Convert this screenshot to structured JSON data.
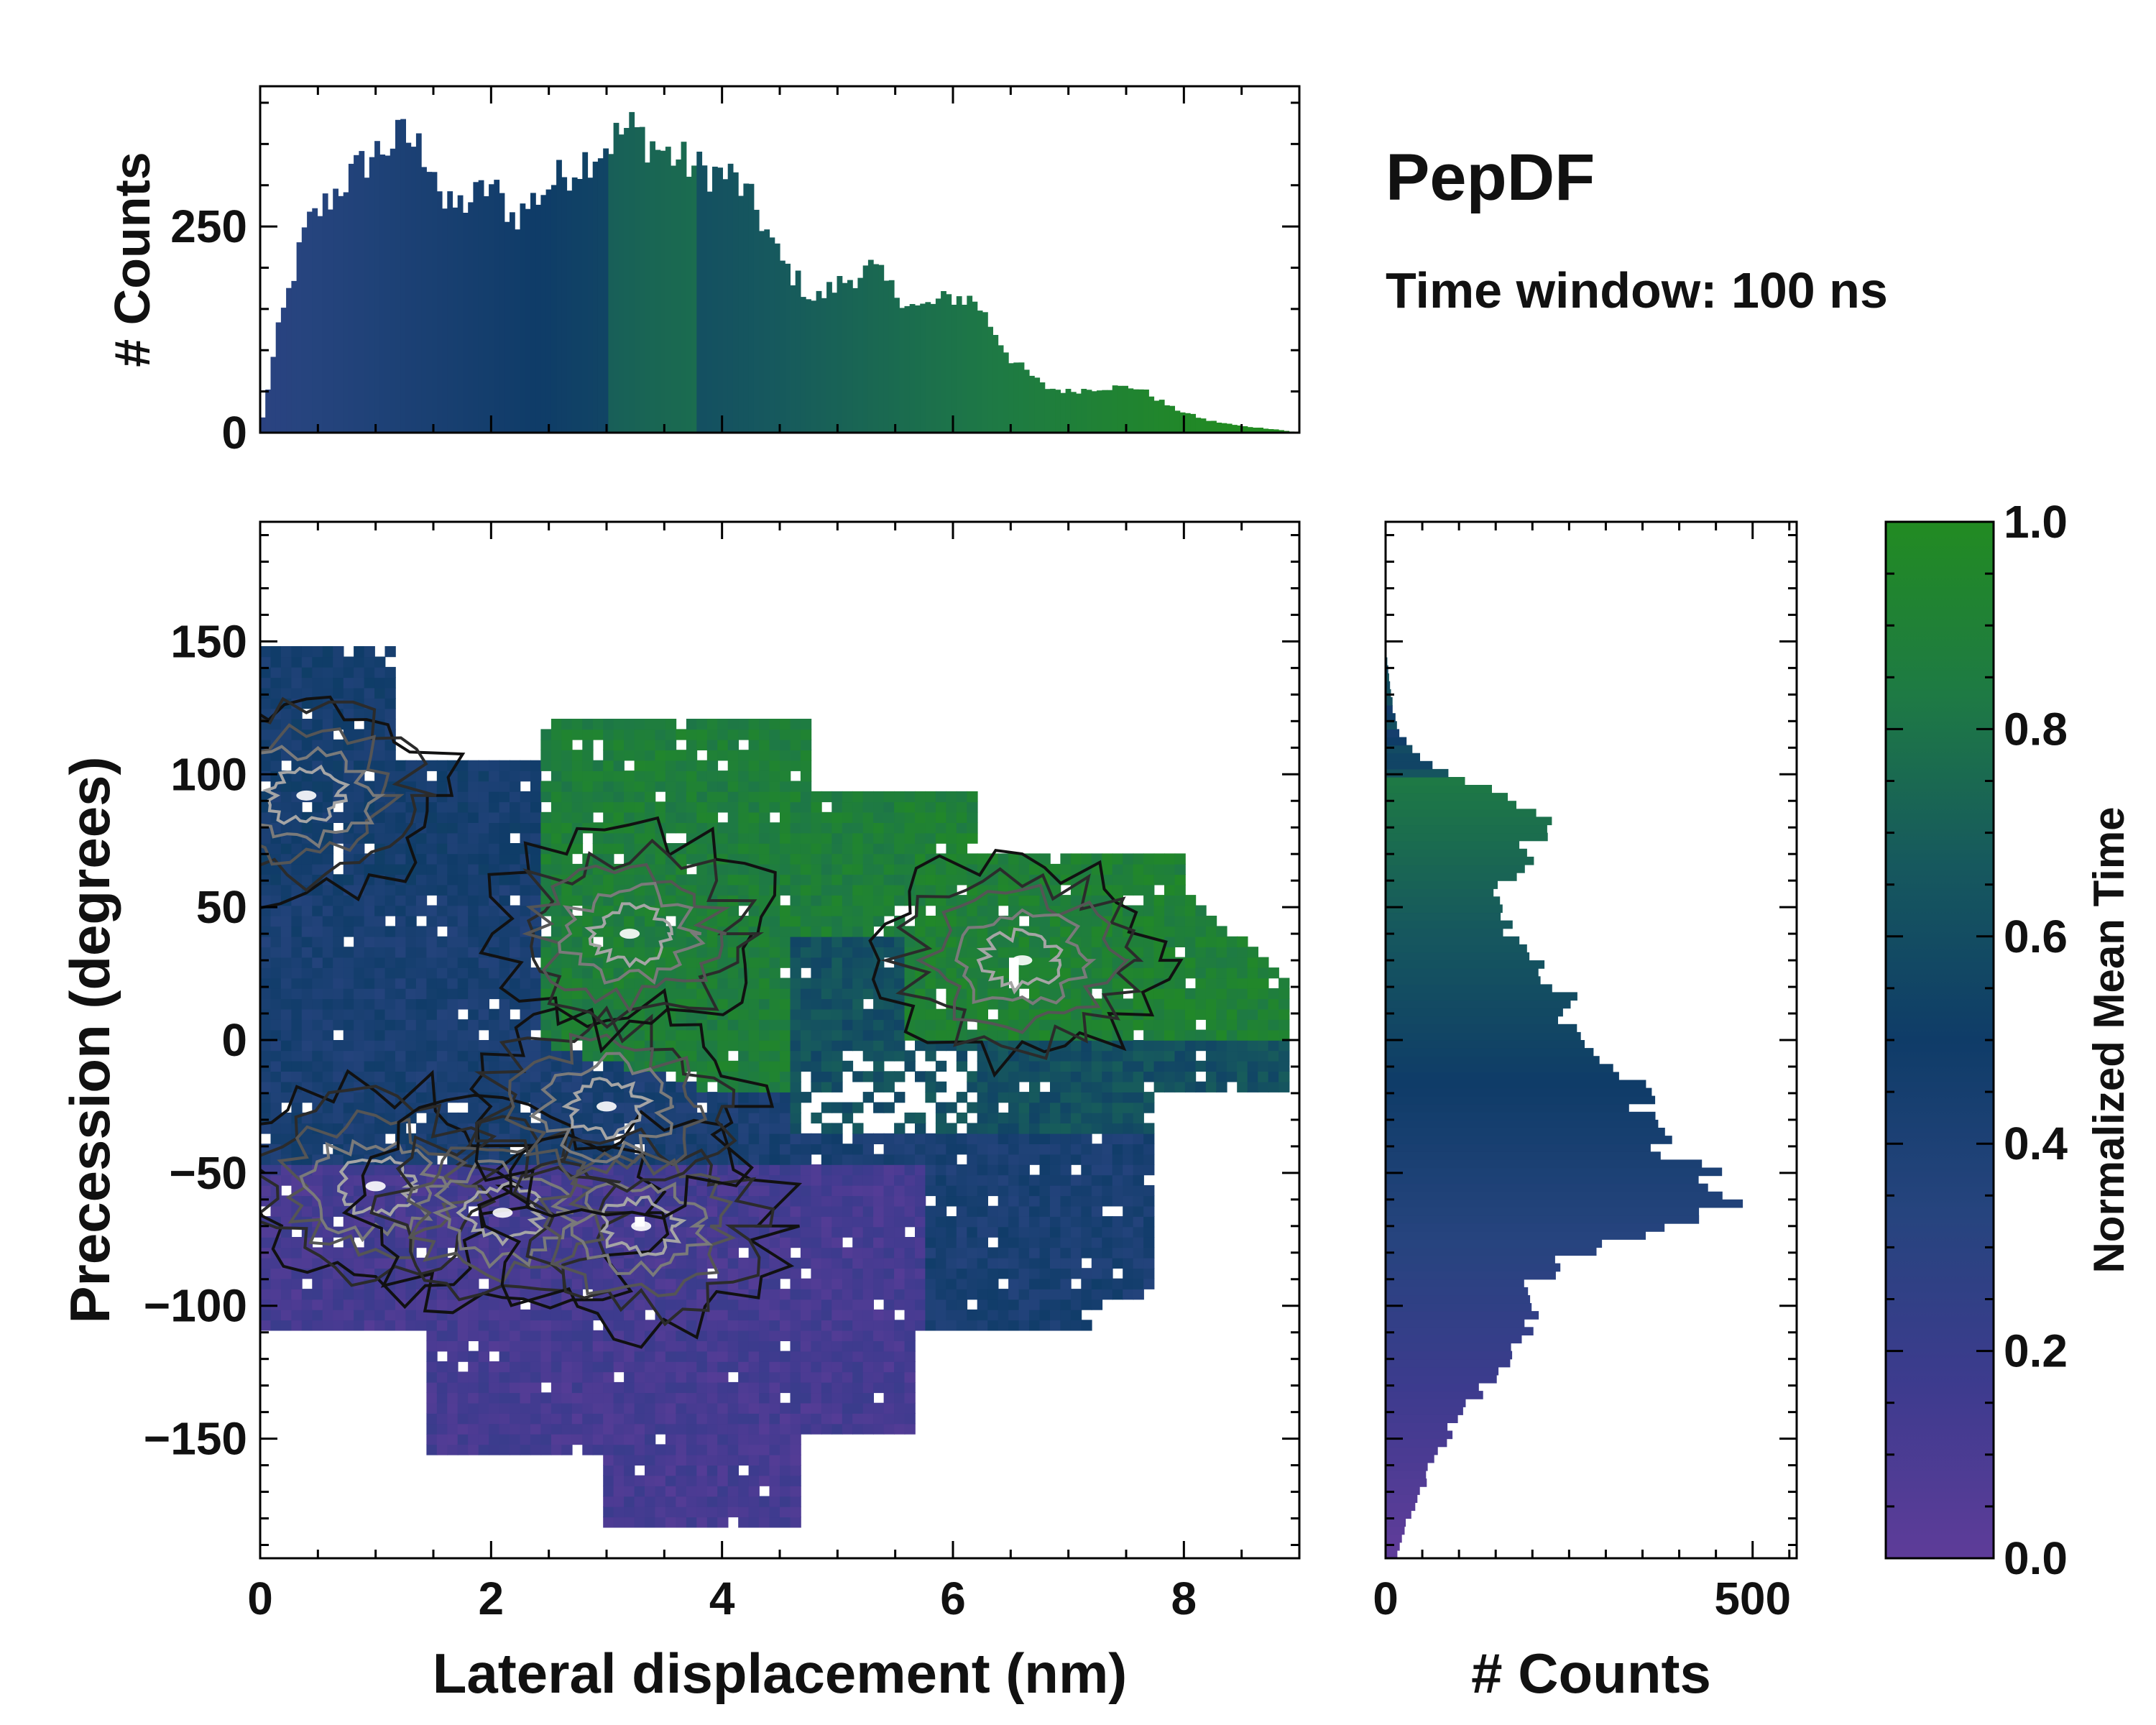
{
  "chart_data": {
    "title": "PepDF",
    "subtitle": "Time window: 100 ns",
    "main_panel": {
      "type": "heatmap",
      "xlabel": "Lateral displacement (nm)",
      "ylabel": "Precession (degrees)",
      "xlim": [
        0,
        9
      ],
      "ylim": [
        -195,
        195
      ],
      "xticks": [
        0,
        2,
        4,
        6,
        8
      ],
      "yticks": [
        -150,
        -100,
        -50,
        0,
        50,
        100,
        150
      ],
      "color_encoding": "Normalized Mean Time",
      "description_regions": [
        {
          "name": "early (purple)",
          "x_range": [
            0.2,
            5.5
          ],
          "y_range": [
            -180,
            -40
          ],
          "mean_time": 0.15
        },
        {
          "name": "mid (blue)",
          "x_range": [
            0,
            4.5
          ],
          "y_range": [
            -60,
            150
          ],
          "mean_time": 0.45
        },
        {
          "name": "late (green)",
          "x_range": [
            2.4,
            9
          ],
          "y_range": [
            -30,
            120
          ],
          "mean_time": 0.9
        }
      ],
      "density_peaks": [
        {
          "x": 1.0,
          "y": -55
        },
        {
          "x": 2.1,
          "y": -65
        },
        {
          "x": 3.3,
          "y": -70
        },
        {
          "x": 3.0,
          "y": -25
        },
        {
          "x": 3.2,
          "y": 40
        },
        {
          "x": 0.4,
          "y": 92
        },
        {
          "x": 6.6,
          "y": 30
        }
      ]
    },
    "top_histogram": {
      "type": "bar",
      "ylabel": "# Counts",
      "yticks": [
        0,
        250
      ],
      "ylim": [
        0,
        420
      ],
      "bin_width_nm": 0.045,
      "profile_x": [
        0,
        0.15,
        0.4,
        0.7,
        1.0,
        1.25,
        1.5,
        1.6,
        1.8,
        2.0,
        2.2,
        2.5,
        2.8,
        3.0,
        3.2,
        3.5,
        3.8,
        4.1,
        4.3,
        4.5,
        4.8,
        5.0,
        5.3,
        5.5,
        5.7,
        6.0,
        6.2,
        6.5,
        6.8,
        7.0,
        7.3,
        7.6,
        7.9,
        8.2,
        8.5,
        8.8,
        9.0
      ],
      "profile_counts": [
        0,
        120,
        250,
        300,
        340,
        360,
        330,
        270,
        280,
        300,
        260,
        300,
        330,
        350,
        370,
        340,
        320,
        310,
        270,
        210,
        160,
        180,
        200,
        170,
        150,
        165,
        160,
        90,
        55,
        50,
        55,
        55,
        30,
        15,
        8,
        4,
        0
      ]
    },
    "right_histogram": {
      "type": "bar",
      "orientation": "horizontal",
      "xlabel": "# Counts",
      "xticks": [
        0,
        500
      ],
      "xlim": [
        0,
        560
      ],
      "bin_width_deg": 3,
      "profile_y": [
        -195,
        -180,
        -165,
        -150,
        -135,
        -120,
        -105,
        -95,
        -85,
        -75,
        -65,
        -58,
        -50,
        -40,
        -25,
        -10,
        0,
        10,
        20,
        30,
        45,
        55,
        65,
        75,
        85,
        95,
        105,
        115,
        125,
        135,
        150
      ],
      "profile_counts": [
        15,
        30,
        55,
        80,
        120,
        160,
        200,
        190,
        230,
        320,
        420,
        490,
        430,
        370,
        350,
        330,
        270,
        250,
        240,
        200,
        160,
        150,
        190,
        200,
        220,
        130,
        50,
        20,
        10,
        5,
        0
      ]
    },
    "colorbar": {
      "label": "Normalized Mean Time",
      "ticks": [
        0.0,
        0.2,
        0.4,
        0.6,
        0.8,
        1.0
      ],
      "tick_labels": [
        "0.0",
        "0.2",
        "0.4",
        "0.6",
        "0.8",
        "1.0"
      ],
      "colors": [
        "#5e3c99",
        "#3d3b8e",
        "#26447e",
        "#0f3c68",
        "#16585e",
        "#1e7a44",
        "#228b22"
      ]
    }
  }
}
